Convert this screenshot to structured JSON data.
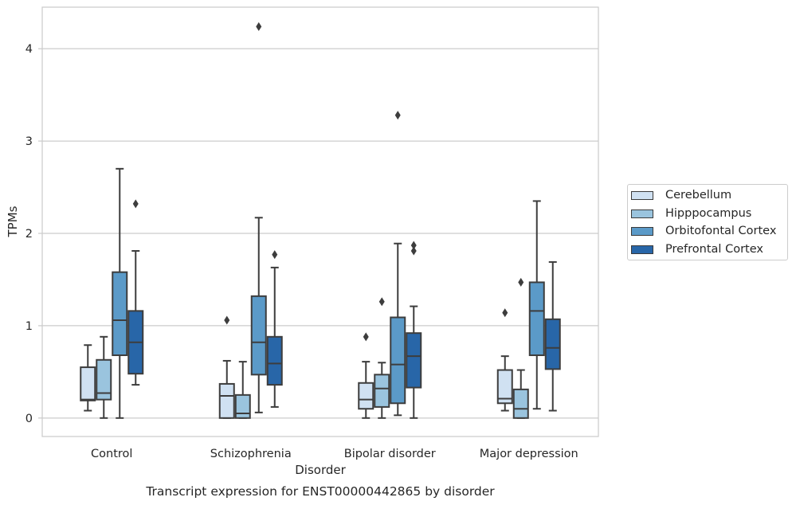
{
  "chart_data": {
    "type": "box",
    "title": "Transcript expression for ENST00000442865 by disorder",
    "xlabel": "Disorder",
    "ylabel": "TPMs",
    "ylim": [
      -0.2,
      4.45
    ],
    "yticks": [
      0,
      1,
      2,
      3,
      4
    ],
    "grid": "y",
    "legend_placement": "right",
    "categories": [
      "Control",
      "Schizophrenia",
      "Bipolar disorder",
      "Major depression"
    ],
    "series": [
      {
        "name": "Cerebellum",
        "color": "#d0e1f2",
        "boxes": [
          {
            "whislo": 0.08,
            "q1": 0.19,
            "med": 0.2,
            "q3": 0.55,
            "whishi": 0.79,
            "fliers": []
          },
          {
            "whislo": 0.0,
            "q1": 0.0,
            "med": 0.24,
            "q3": 0.37,
            "whishi": 0.62,
            "fliers": [
              1.06
            ]
          },
          {
            "whislo": 0.0,
            "q1": 0.1,
            "med": 0.2,
            "q3": 0.38,
            "whishi": 0.61,
            "fliers": [
              0.88
            ]
          },
          {
            "whislo": 0.08,
            "q1": 0.16,
            "med": 0.21,
            "q3": 0.52,
            "whishi": 0.67,
            "fliers": [
              1.14
            ]
          }
        ]
      },
      {
        "name": "Hipppocampus",
        "color": "#9ac4de",
        "boxes": [
          {
            "whislo": 0.0,
            "q1": 0.2,
            "med": 0.27,
            "q3": 0.63,
            "whishi": 0.88,
            "fliers": []
          },
          {
            "whislo": 0.0,
            "q1": 0.0,
            "med": 0.05,
            "q3": 0.25,
            "whishi": 0.61,
            "fliers": []
          },
          {
            "whislo": 0.0,
            "q1": 0.12,
            "med": 0.32,
            "q3": 0.47,
            "whishi": 0.6,
            "fliers": [
              1.26
            ]
          },
          {
            "whislo": 0.0,
            "q1": 0.0,
            "med": 0.1,
            "q3": 0.31,
            "whishi": 0.52,
            "fliers": [
              1.47
            ]
          }
        ]
      },
      {
        "name": "Orbitofontal Cortex",
        "color": "#5b9ac8",
        "boxes": [
          {
            "whislo": 0.0,
            "q1": 0.68,
            "med": 1.06,
            "q3": 1.58,
            "whishi": 2.7,
            "fliers": []
          },
          {
            "whislo": 0.06,
            "q1": 0.47,
            "med": 0.82,
            "q3": 1.32,
            "whishi": 2.17,
            "fliers": [
              4.24
            ]
          },
          {
            "whislo": 0.03,
            "q1": 0.16,
            "med": 0.58,
            "q3": 1.09,
            "whishi": 1.89,
            "fliers": [
              3.28
            ]
          },
          {
            "whislo": 0.1,
            "q1": 0.68,
            "med": 1.16,
            "q3": 1.47,
            "whishi": 2.35,
            "fliers": []
          }
        ]
      },
      {
        "name": "Prefrontal Cortex",
        "color": "#2866a8",
        "boxes": [
          {
            "whislo": 0.36,
            "q1": 0.48,
            "med": 0.82,
            "q3": 1.16,
            "whishi": 1.81,
            "fliers": [
              2.32
            ]
          },
          {
            "whislo": 0.12,
            "q1": 0.36,
            "med": 0.59,
            "q3": 0.88,
            "whishi": 1.63,
            "fliers": [
              1.77
            ]
          },
          {
            "whislo": 0.0,
            "q1": 0.33,
            "med": 0.67,
            "q3": 0.92,
            "whishi": 1.21,
            "fliers": [
              1.81,
              1.87
            ]
          },
          {
            "whislo": 0.08,
            "q1": 0.53,
            "med": 0.76,
            "q3": 1.07,
            "whishi": 1.69,
            "fliers": []
          }
        ]
      }
    ]
  }
}
